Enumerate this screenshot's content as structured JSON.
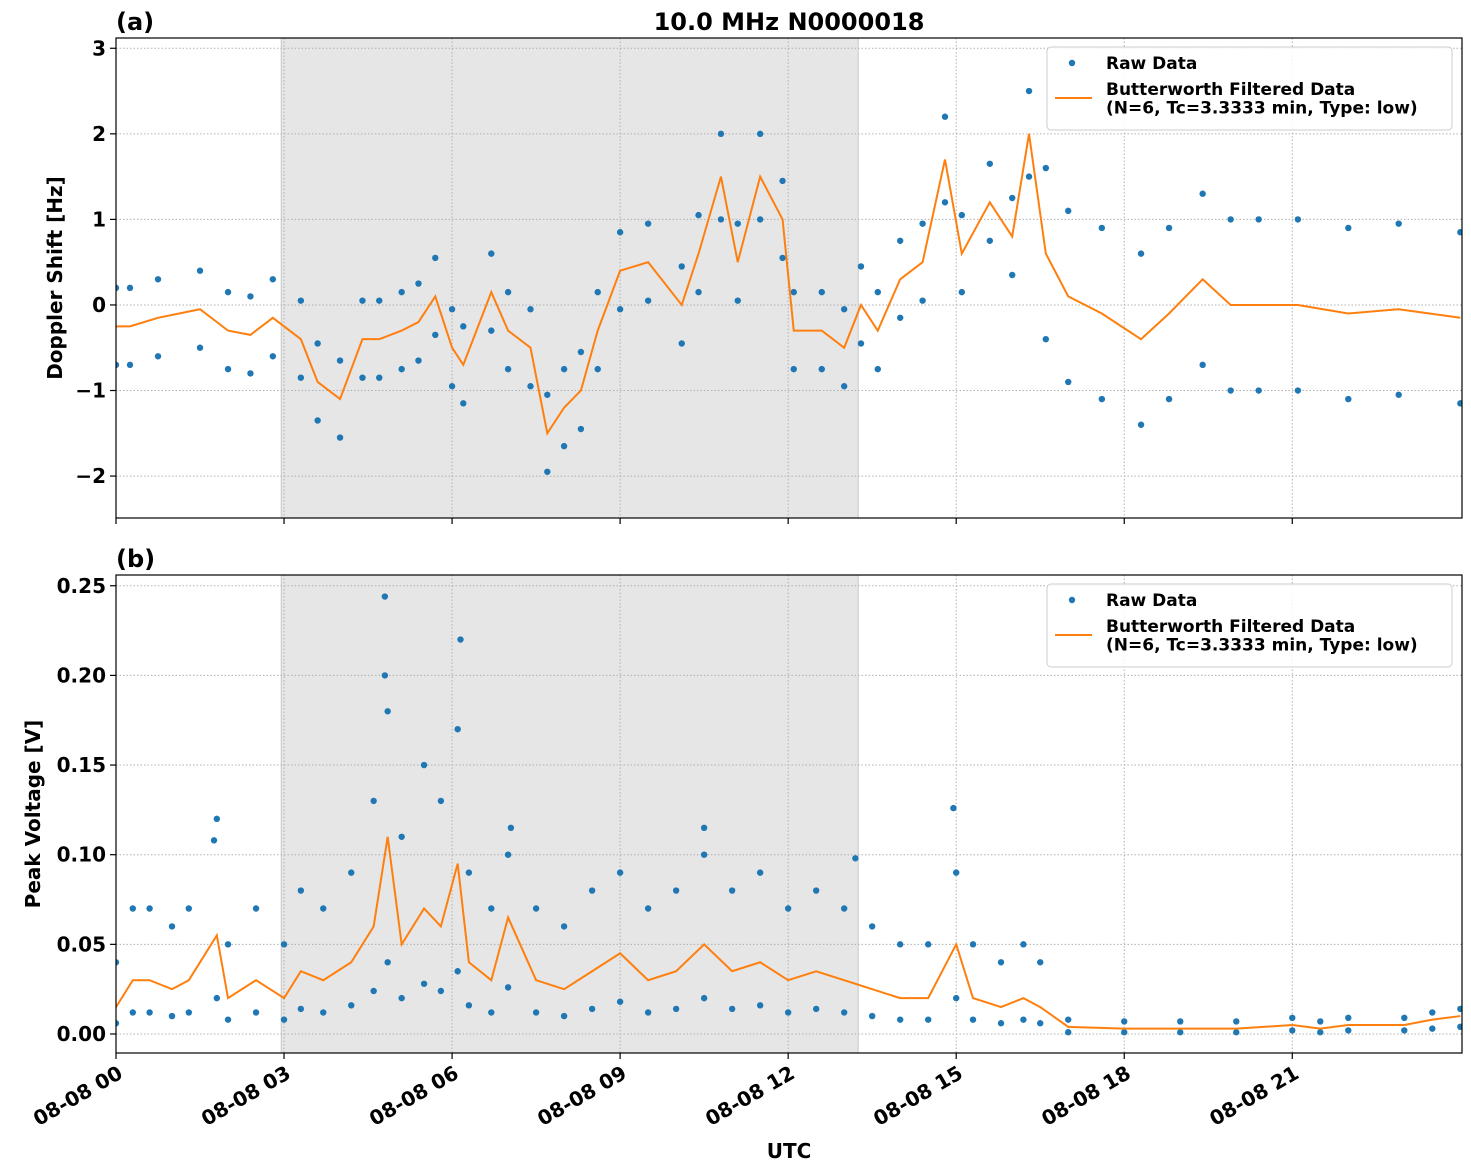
{
  "chart_data": [
    {
      "type": "scatter_line",
      "panel_label": "(a)",
      "title": "10.0 MHz N0000018",
      "ylabel": "Doppler Shift [Hz]",
      "xlim": [
        0,
        24.03
      ],
      "ylim": [
        -2.49,
        3.12
      ],
      "xticks": [
        {
          "value": 0,
          "label": "08-08 00"
        },
        {
          "value": 3,
          "label": "08-08 03"
        },
        {
          "value": 6,
          "label": "08-08 06"
        },
        {
          "value": 9,
          "label": "08-08 09"
        },
        {
          "value": 12,
          "label": "08-08 12"
        },
        {
          "value": 15,
          "label": "08-08 15"
        },
        {
          "value": 18,
          "label": "08-08 18"
        },
        {
          "value": 21,
          "label": "08-08 21"
        }
      ],
      "show_xtick_labels": false,
      "yticks": [
        {
          "value": -2,
          "label": "−2"
        },
        {
          "value": -1,
          "label": "−1"
        },
        0,
        1,
        2,
        3
      ],
      "grid": true,
      "legend": "upper right",
      "shaded_span": [
        2.95,
        13.25
      ],
      "shaded_color": "#e6e6e6",
      "series": [
        {
          "name": "Raw Data",
          "color": "#1f77b4",
          "marker": "dot",
          "x": [
            0,
            0.25,
            0.75,
            1.5,
            2,
            2.4,
            2.8,
            3.3,
            3.6,
            4.0,
            4.4,
            4.7,
            5.1,
            5.4,
            5.7,
            6.0,
            6.2,
            6.7,
            7.0,
            7.4,
            7.7,
            8.0,
            8.3,
            8.6,
            9.0,
            9.5,
            10.1,
            10.4,
            10.8,
            11.1,
            11.5,
            11.9,
            12.1,
            12.6,
            13.0,
            13.3,
            13.6,
            14.0,
            14.4,
            14.8,
            15.1,
            15.6,
            16.0,
            16.3,
            16.6,
            17.0,
            17.6,
            18.3,
            18.8,
            19.4,
            19.9,
            20.4,
            21.1,
            22.0,
            22.9,
            24.0,
            0,
            0.25,
            0.75,
            1.5,
            2,
            2.4,
            2.8,
            3.3,
            3.6,
            4.0,
            4.4,
            4.7,
            5.1,
            5.4,
            5.7,
            6.0,
            6.2,
            6.7,
            7.0,
            7.4,
            7.7,
            8.0,
            8.3,
            8.6,
            9.0,
            9.5,
            10.1,
            10.4,
            10.8,
            11.1,
            11.5,
            11.9,
            12.1,
            12.6,
            13.0,
            13.3,
            13.6,
            14.0,
            14.4,
            14.8,
            15.1,
            15.6,
            16.0,
            16.3,
            16.6,
            17.0,
            17.6,
            18.3,
            18.8,
            19.4,
            19.9,
            20.4,
            21.1,
            22.0,
            22.9,
            24.0
          ],
          "values": [
            0.2,
            0.2,
            0.3,
            0.4,
            0.15,
            0.1,
            0.3,
            0.05,
            -0.45,
            -0.65,
            0.05,
            0.05,
            0.15,
            0.25,
            0.55,
            -0.05,
            -0.25,
            0.6,
            0.15,
            -0.05,
            -1.05,
            -0.75,
            -0.55,
            0.15,
            0.85,
            0.95,
            0.45,
            1.05,
            2.0,
            0.95,
            2.0,
            1.45,
            0.15,
            0.15,
            -0.05,
            0.45,
            0.15,
            0.75,
            0.95,
            2.2,
            1.05,
            1.65,
            1.25,
            2.5,
            1.6,
            1.1,
            0.9,
            0.6,
            0.9,
            1.3,
            1.0,
            1.0,
            1.0,
            0.9,
            0.95,
            0.85,
            -0.7,
            -0.7,
            -0.6,
            -0.5,
            -0.75,
            -0.8,
            -0.6,
            -0.85,
            -1.35,
            -1.55,
            -0.85,
            -0.85,
            -0.75,
            -0.65,
            -0.35,
            -0.95,
            -1.15,
            -0.3,
            -0.75,
            -0.95,
            -1.95,
            -1.65,
            -1.45,
            -0.75,
            -0.05,
            0.05,
            -0.45,
            0.15,
            1.0,
            0.05,
            1.0,
            0.55,
            -0.75,
            -0.75,
            -0.95,
            -0.45,
            -0.75,
            -0.15,
            0.05,
            1.2,
            0.15,
            0.75,
            0.35,
            1.5,
            -0.4,
            -0.9,
            -1.1,
            -1.4,
            -1.1,
            -0.7,
            -1.0,
            -1.0,
            -1.0,
            -1.1,
            -1.05,
            -1.15
          ]
        },
        {
          "name": "Butterworth Filtered Data\n(N=6, Tc=3.3333 min, Type: low)",
          "color": "#ff7f0e",
          "marker": "line",
          "x": [
            0,
            0.25,
            0.75,
            1.5,
            2,
            2.4,
            2.8,
            3.3,
            3.6,
            4.0,
            4.4,
            4.7,
            5.1,
            5.4,
            5.7,
            6.0,
            6.2,
            6.7,
            7.0,
            7.4,
            7.7,
            8.0,
            8.3,
            8.6,
            9.0,
            9.5,
            10.1,
            10.4,
            10.8,
            11.1,
            11.5,
            11.9,
            12.1,
            12.6,
            13.0,
            13.3,
            13.6,
            14.0,
            14.4,
            14.8,
            15.1,
            15.6,
            16.0,
            16.3,
            16.6,
            17.0,
            17.6,
            18.3,
            18.8,
            19.4,
            19.9,
            20.4,
            21.1,
            22.0,
            22.9,
            24.0
          ],
          "values": [
            -0.25,
            -0.25,
            -0.15,
            -0.05,
            -0.3,
            -0.35,
            -0.15,
            -0.4,
            -0.9,
            -1.1,
            -0.4,
            -0.4,
            -0.3,
            -0.2,
            0.1,
            -0.5,
            -0.7,
            0.15,
            -0.3,
            -0.5,
            -1.5,
            -1.2,
            -1.0,
            -0.3,
            0.4,
            0.5,
            0.0,
            0.6,
            1.5,
            0.5,
            1.5,
            1.0,
            -0.3,
            -0.3,
            -0.5,
            0.0,
            -0.3,
            0.3,
            0.5,
            1.7,
            0.6,
            1.2,
            0.8,
            2.0,
            0.6,
            0.1,
            -0.1,
            -0.4,
            -0.1,
            0.3,
            0.0,
            0.0,
            0.0,
            -0.1,
            -0.05,
            -0.15
          ]
        }
      ]
    },
    {
      "type": "scatter_line",
      "panel_label": "(b)",
      "ylabel": "Peak Voltage [V]",
      "xlabel": "UTC",
      "xlim": [
        0,
        24.03
      ],
      "ylim": [
        -0.0106,
        0.256
      ],
      "xticks": [
        {
          "value": 0,
          "label": "08-08 00"
        },
        {
          "value": 3,
          "label": "08-08 03"
        },
        {
          "value": 6,
          "label": "08-08 06"
        },
        {
          "value": 9,
          "label": "08-08 09"
        },
        {
          "value": 12,
          "label": "08-08 12"
        },
        {
          "value": 15,
          "label": "08-08 15"
        },
        {
          "value": 18,
          "label": "08-08 18"
        },
        {
          "value": 21,
          "label": "08-08 21"
        }
      ],
      "show_xtick_labels": true,
      "yticks": [
        {
          "value": 0,
          "label": "0.00"
        },
        {
          "value": 0.05,
          "label": "0.05"
        },
        {
          "value": 0.1,
          "label": "0.10"
        },
        {
          "value": 0.15,
          "label": "0.15"
        },
        {
          "value": 0.2,
          "label": "0.20"
        },
        {
          "value": 0.25,
          "label": "0.25"
        }
      ],
      "grid": true,
      "legend": "upper right",
      "shaded_span": [
        2.95,
        13.25
      ],
      "shaded_color": "#e6e6e6",
      "series": [
        {
          "name": "Raw Data",
          "color": "#1f77b4",
          "marker": "dot",
          "x": [
            0,
            0.3,
            0.6,
            1.0,
            1.3,
            1.8,
            2.0,
            2.5,
            3.0,
            3.3,
            3.7,
            4.2,
            4.6,
            4.85,
            5.1,
            5.5,
            5.8,
            6.1,
            6.3,
            6.7,
            7.0,
            7.5,
            8.0,
            8.5,
            9.0,
            9.5,
            10.0,
            10.5,
            11.0,
            11.5,
            12.0,
            12.5,
            13.0,
            13.5,
            14.0,
            14.5,
            15.0,
            15.3,
            15.8,
            16.2,
            16.5,
            17.0,
            18.0,
            19.0,
            20.0,
            21.0,
            21.5,
            22.0,
            23.0,
            23.5,
            24.0,
            0,
            0.3,
            0.6,
            1.0,
            1.3,
            1.8,
            2.0,
            2.5,
            3.0,
            3.3,
            3.7,
            4.2,
            4.6,
            4.85,
            5.1,
            5.5,
            5.8,
            6.1,
            6.3,
            6.7,
            7.0,
            7.5,
            8.0,
            8.5,
            9.0,
            9.5,
            10.0,
            10.5,
            11.0,
            11.5,
            12.0,
            12.5,
            13.0,
            13.5,
            14.0,
            14.5,
            15.0,
            15.3,
            15.8,
            16.2,
            16.5,
            17.0,
            18.0,
            19.0,
            20.0,
            21.0,
            21.5,
            22.0,
            23.0,
            23.5,
            24.0,
            4.8,
            4.8,
            6.15,
            1.75,
            14.95,
            7.05,
            10.5,
            13.2
          ],
          "values": [
            0.04,
            0.07,
            0.07,
            0.06,
            0.07,
            0.12,
            0.05,
            0.07,
            0.05,
            0.08,
            0.07,
            0.09,
            0.13,
            0.18,
            0.11,
            0.15,
            0.13,
            0.17,
            0.09,
            0.07,
            0.1,
            0.07,
            0.06,
            0.08,
            0.09,
            0.07,
            0.08,
            0.1,
            0.08,
            0.09,
            0.07,
            0.08,
            0.07,
            0.06,
            0.05,
            0.05,
            0.09,
            0.05,
            0.04,
            0.05,
            0.04,
            0.008,
            0.007,
            0.007,
            0.007,
            0.009,
            0.007,
            0.009,
            0.009,
            0.012,
            0.014,
            0.006,
            0.012,
            0.012,
            0.01,
            0.012,
            0.02,
            0.008,
            0.012,
            0.008,
            0.014,
            0.012,
            0.016,
            0.024,
            0.04,
            0.02,
            0.028,
            0.024,
            0.035,
            0.016,
            0.012,
            0.026,
            0.012,
            0.01,
            0.014,
            0.018,
            0.012,
            0.014,
            0.02,
            0.014,
            0.016,
            0.012,
            0.014,
            0.012,
            0.01,
            0.008,
            0.008,
            0.02,
            0.008,
            0.006,
            0.008,
            0.006,
            0.001,
            0.001,
            0.001,
            0.001,
            0.002,
            0.001,
            0.002,
            0.002,
            0.003,
            0.004,
            0.244,
            0.2,
            0.22,
            0.108,
            0.126,
            0.115,
            0.115,
            0.098
          ]
        },
        {
          "name": "Butterworth Filtered Data\n(N=6, Tc=3.3333 min, Type: low)",
          "color": "#ff7f0e",
          "marker": "line",
          "x": [
            0,
            0.3,
            0.6,
            1.0,
            1.3,
            1.8,
            2.0,
            2.5,
            3.0,
            3.3,
            3.7,
            4.2,
            4.6,
            4.85,
            5.1,
            5.5,
            5.8,
            6.1,
            6.3,
            6.7,
            7.0,
            7.5,
            8.0,
            8.5,
            9.0,
            9.5,
            10.0,
            10.5,
            11.0,
            11.5,
            12.0,
            12.5,
            13.0,
            13.5,
            14.0,
            14.5,
            15.0,
            15.3,
            15.8,
            16.2,
            16.5,
            17.0,
            18.0,
            19.0,
            20.0,
            21.0,
            21.5,
            22.0,
            23.0,
            23.5,
            24.0
          ],
          "values": [
            0.015,
            0.03,
            0.03,
            0.025,
            0.03,
            0.055,
            0.02,
            0.03,
            0.02,
            0.035,
            0.03,
            0.04,
            0.06,
            0.11,
            0.05,
            0.07,
            0.06,
            0.095,
            0.04,
            0.03,
            0.065,
            0.03,
            0.025,
            0.035,
            0.045,
            0.03,
            0.035,
            0.05,
            0.035,
            0.04,
            0.03,
            0.035,
            0.03,
            0.025,
            0.02,
            0.02,
            0.05,
            0.02,
            0.015,
            0.02,
            0.015,
            0.004,
            0.003,
            0.003,
            0.003,
            0.005,
            0.003,
            0.005,
            0.005,
            0.008,
            0.01
          ]
        }
      ]
    }
  ]
}
